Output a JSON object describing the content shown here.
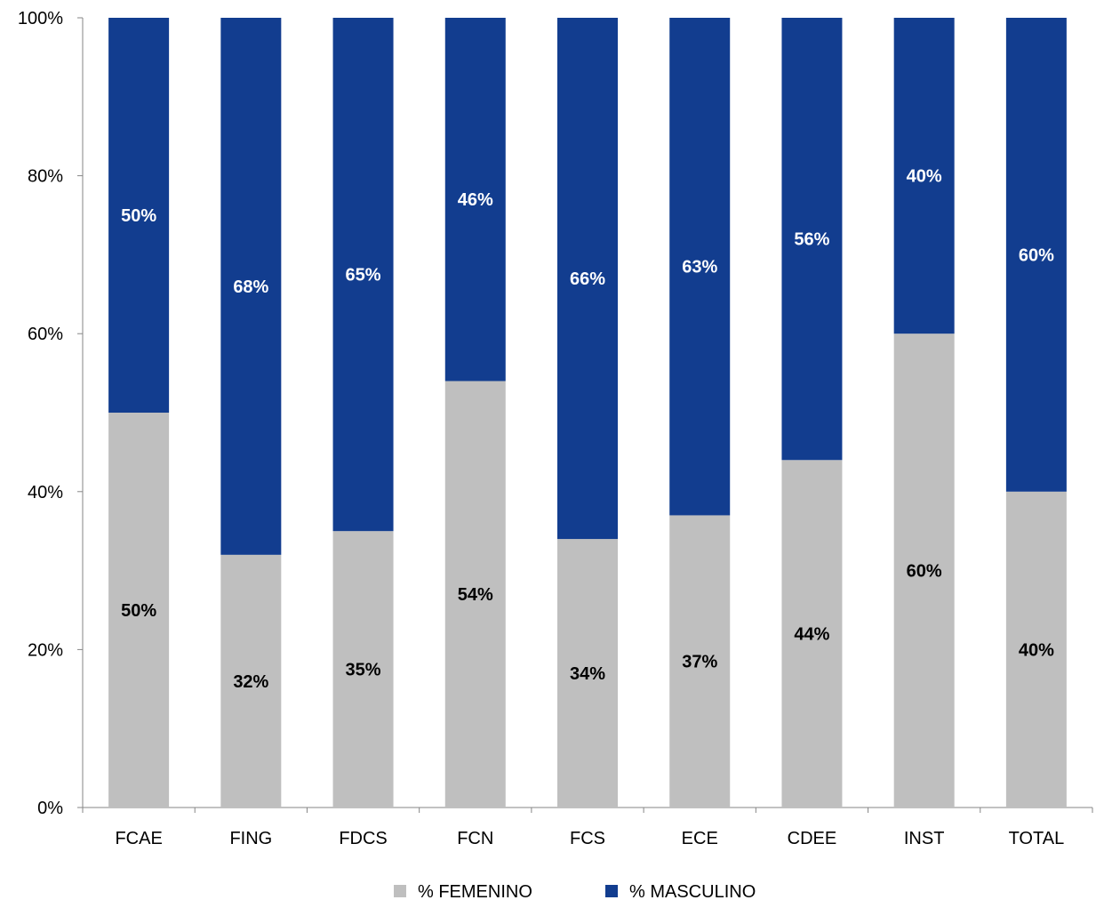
{
  "chart_data": {
    "type": "bar",
    "stacked": true,
    "percent_stacked": true,
    "categories": [
      "FCAE",
      "FING",
      "FDCS",
      "FCN",
      "FCS",
      "ECE",
      "CDEE",
      "INST",
      "TOTAL"
    ],
    "series": [
      {
        "name": "% FEMENINO",
        "color": "#bfbfbf",
        "label_color": "#000000",
        "values": [
          50,
          32,
          35,
          54,
          34,
          37,
          44,
          60,
          40
        ],
        "labels": [
          "50%",
          "32%",
          "35%",
          "54%",
          "34%",
          "37%",
          "44%",
          "60%",
          "40%"
        ]
      },
      {
        "name": "% MASCULINO",
        "color": "#123d8f",
        "label_color": "#ffffff",
        "values": [
          50,
          68,
          65,
          46,
          66,
          63,
          56,
          40,
          60
        ],
        "labels": [
          "50%",
          "68%",
          "65%",
          "46%",
          "66%",
          "63%",
          "56%",
          "40%",
          "60%"
        ]
      }
    ],
    "y_ticks": [
      0,
      20,
      40,
      60,
      80,
      100
    ],
    "y_tick_labels": [
      "0%",
      "20%",
      "40%",
      "60%",
      "80%",
      "100%"
    ],
    "ylim": [
      0,
      100
    ],
    "legend_position": "bottom",
    "grid": false
  }
}
